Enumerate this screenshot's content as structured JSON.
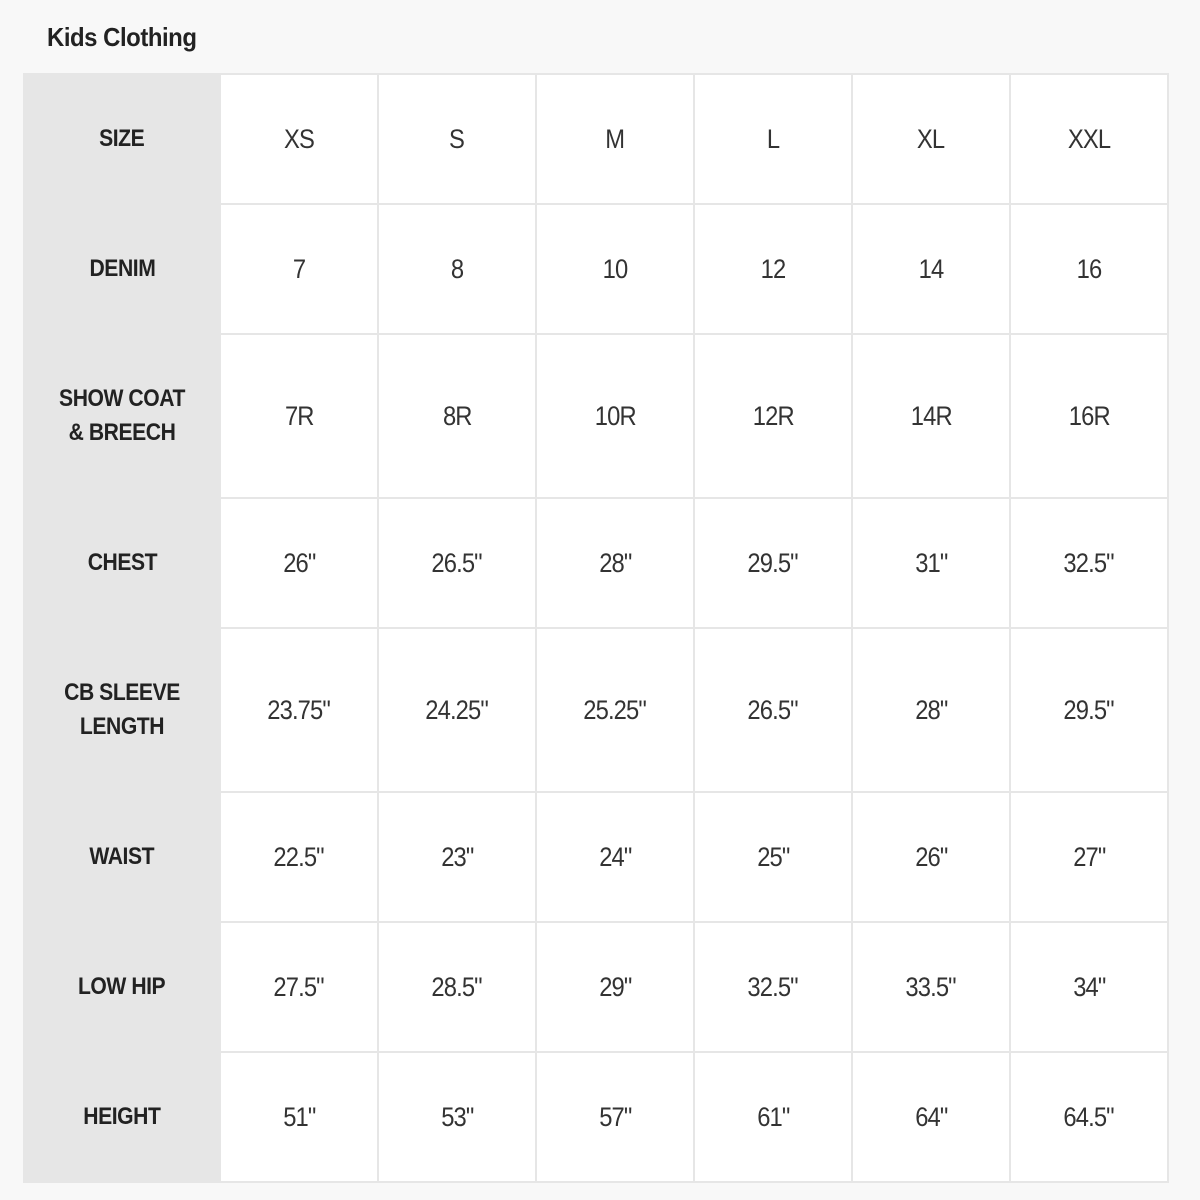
{
  "title": "Kids Clothing",
  "rows": [
    {
      "label": "SIZE",
      "values": [
        "XS",
        "S",
        "M",
        "L",
        "XL",
        "XXL"
      ]
    },
    {
      "label": "DENIM",
      "values": [
        "7",
        "8",
        "10",
        "12",
        "14",
        "16"
      ]
    },
    {
      "label": "SHOW COAT & BREECH",
      "values": [
        "7R",
        "8R",
        "10R",
        "12R",
        "14R",
        "16R"
      ]
    },
    {
      "label": "CHEST",
      "values": [
        "26\"",
        "26.5\"",
        "28\"",
        "29.5\"",
        "31\"",
        "32.5\""
      ]
    },
    {
      "label": "CB SLEEVE LENGTH",
      "values": [
        "23.75\"",
        "24.25\"",
        "25.25\"",
        "26.5\"",
        "28\"",
        "29.5\""
      ]
    },
    {
      "label": "WAIST",
      "values": [
        "22.5\"",
        "23\"",
        "24\"",
        "25\"",
        "26\"",
        "27\""
      ]
    },
    {
      "label": "LOW HIP",
      "values": [
        "27.5\"",
        "28.5\"",
        "29\"",
        "32.5\"",
        "33.5\"",
        "34\""
      ]
    },
    {
      "label": "HEIGHT",
      "values": [
        "51\"",
        "53\"",
        "57\"",
        "61\"",
        "64\"",
        "64.5\""
      ]
    }
  ],
  "colors": {
    "label_bg": "#e6e6e6",
    "page_bg": "#f8f8f8",
    "border": "#e6e6e6"
  }
}
